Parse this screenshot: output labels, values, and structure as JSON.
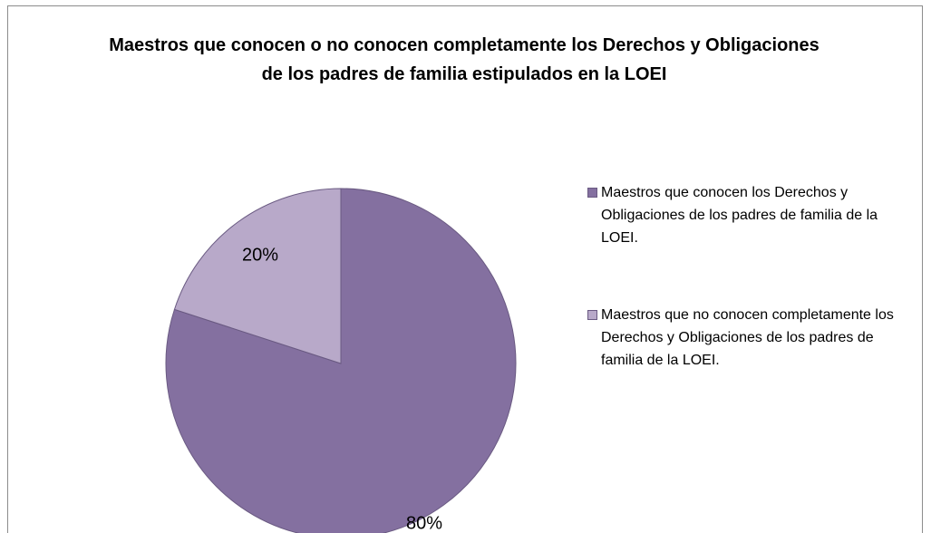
{
  "chart_data": {
    "type": "pie",
    "title": "Maestros que conocen o no conocen completamente los Derechos y Obligaciones de los padres de familia estipulados en la LOEI",
    "categories": [
      "Maestros que conocen los Derechos y Obligaciones de los padres de familia de la LOEI.",
      "Maestros que no conocen completamente los Derechos y Obligaciones de los padres de familia de la LOEI."
    ],
    "values": [
      80,
      20
    ],
    "value_labels": [
      "80%",
      "20%"
    ],
    "colors": [
      "#8470a0",
      "#b8a9c9"
    ],
    "legend": "right"
  }
}
